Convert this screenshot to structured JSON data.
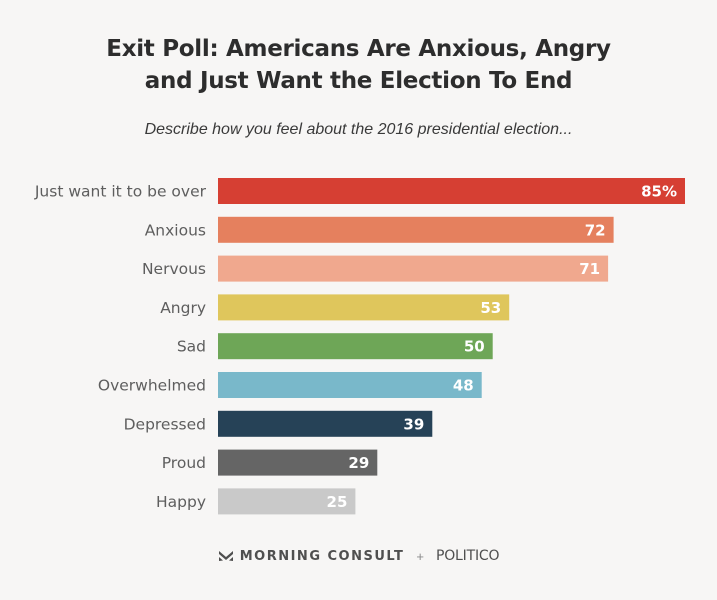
{
  "header": {
    "title_line1": "Exit Poll: Americans Are Anxious, Angry",
    "title_line2": "and Just Want the Election To End",
    "subtitle": "Describe how you feel about the 2016 presidential election..."
  },
  "footer": {
    "brand1": "MORNING CONSULT",
    "separator": "+",
    "brand2": "POLITICO"
  },
  "colors": {
    "background": "#f7f6f5"
  },
  "chart_data": {
    "type": "bar",
    "orientation": "horizontal",
    "title": "Exit Poll: Americans Are Anxious, Angry and Just Want the Election To End",
    "subtitle": "Describe how you feel about the 2016 presidential election...",
    "categories": [
      "Just want it to be over",
      "Anxious",
      "Nervous",
      "Angry",
      "Sad",
      "Overwhelmed",
      "Depressed",
      "Proud",
      "Happy"
    ],
    "values": [
      85,
      72,
      71,
      53,
      50,
      48,
      39,
      29,
      25
    ],
    "value_labels": [
      "85%",
      "72",
      "71",
      "53",
      "50",
      "48",
      "39",
      "29",
      "25"
    ],
    "colors": [
      "#d63f33",
      "#e5805e",
      "#f0a88e",
      "#dfc65c",
      "#6ea657",
      "#79b8ca",
      "#264257",
      "#656565",
      "#c9c9c9"
    ],
    "xlim": [
      0,
      85
    ],
    "grid": false,
    "legend": "none"
  }
}
